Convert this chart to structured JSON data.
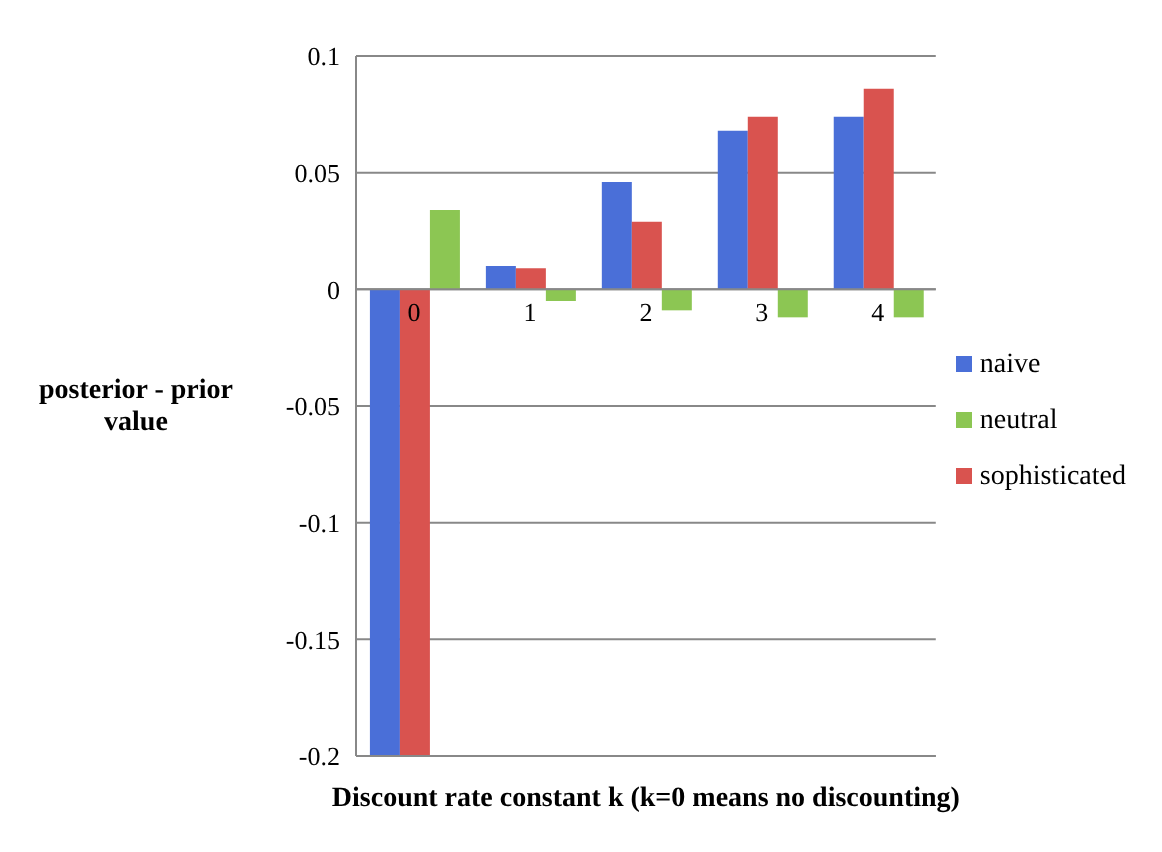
{
  "chart_data": {
    "type": "bar",
    "xlabel": "Discount rate constant k (k=0 means no discounting)",
    "ylabel": "posterior - prior value",
    "categories": [
      "0",
      "1",
      "2",
      "3",
      "4"
    ],
    "series": [
      {
        "name": "naive",
        "color": "#4a6fd8",
        "values": [
          -0.2,
          0.01,
          0.046,
          0.068,
          0.074
        ]
      },
      {
        "name": "sophisticated",
        "color": "#d9534f",
        "values": [
          -0.2,
          0.009,
          0.029,
          0.074,
          0.086
        ]
      },
      {
        "name": "neutral",
        "color": "#8cc653",
        "values": [
          0.034,
          -0.005,
          -0.009,
          -0.012,
          -0.012
        ]
      }
    ],
    "ylim": [
      -0.2,
      0.1
    ],
    "yticks": [
      -0.2,
      -0.15,
      -0.1,
      -0.05,
      0,
      0.05,
      0.1
    ],
    "grid": "y",
    "legend": "right"
  }
}
